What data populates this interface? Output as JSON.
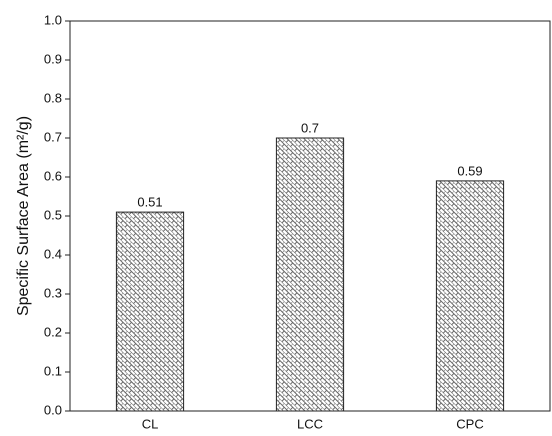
{
  "chart_data": {
    "type": "bar",
    "y_label": "Specific Surface Area (m²/g)",
    "categories": [
      "CL",
      "LCC",
      "CPC"
    ],
    "values": [
      0.51,
      0.7,
      0.59
    ],
    "ylim": [
      0,
      1
    ],
    "yticks": [
      {
        "value": 0,
        "label": "0.0"
      },
      0.1,
      0.2,
      0.3,
      0.4,
      0.5,
      0.6,
      0.7,
      0.8,
      0.9,
      {
        "value": 1,
        "label": "1.0"
      }
    ],
    "grid": false
  }
}
